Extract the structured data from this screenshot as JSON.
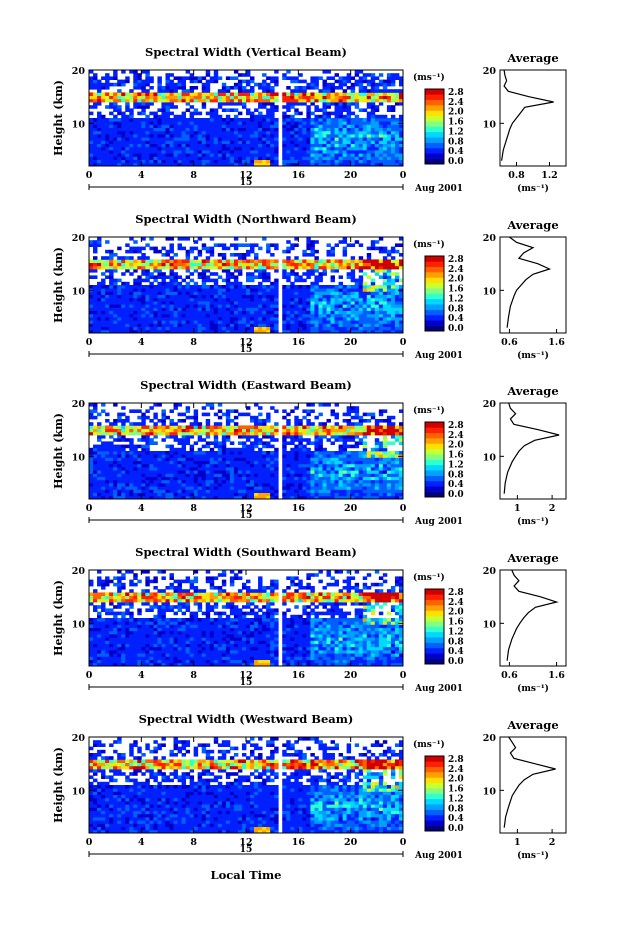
{
  "figure": {
    "xlabel": "Local Time",
    "date_label": "Aug 2001",
    "day_label": "15",
    "colorbar_unit": "(ms⁻¹)",
    "avg_title": "Average",
    "avg_unit": "(ms⁻¹)",
    "colorbar_ticks": [
      "0.0",
      "0.4",
      "0.8",
      "1.2",
      "1.6",
      "2.0",
      "2.4",
      "2.8"
    ],
    "colorbar_colors": [
      "#000080",
      "#0000c8",
      "#0020ff",
      "#0060ff",
      "#00a0ff",
      "#00d8ff",
      "#30ffd0",
      "#80ff80",
      "#c8ff30",
      "#ffe000",
      "#ffa000",
      "#ff6000",
      "#ff2000",
      "#d00000"
    ]
  },
  "chart_data": [
    {
      "type": "heatmap",
      "title": "Spectral Width (Vertical Beam)",
      "ylabel": "Height (km)",
      "xlim": [
        0,
        24
      ],
      "ylim": [
        2,
        20
      ],
      "xticks": [
        "0",
        "4",
        "8",
        "12",
        "16",
        "20",
        "0"
      ],
      "yticks": [
        "10",
        "20"
      ],
      "colorbar_range": [
        0.0,
        2.8
      ],
      "profile": {
        "title": "Average",
        "xticks": [
          "0.8",
          "1.2"
        ],
        "xlim": [
          0.6,
          1.4
        ],
        "yticks": [
          "10",
          "20"
        ],
        "height": [
          3,
          5,
          7,
          9,
          10,
          11,
          12,
          13,
          14,
          15,
          16,
          17,
          18,
          19,
          20
        ],
        "value": [
          0.62,
          0.64,
          0.68,
          0.72,
          0.75,
          0.8,
          0.85,
          0.9,
          1.25,
          0.95,
          0.7,
          0.65,
          0.68,
          0.66,
          0.65
        ]
      }
    },
    {
      "type": "heatmap",
      "title": "Spectral Width (Northward Beam)",
      "ylabel": "Height (km)",
      "xlim": [
        0,
        24
      ],
      "ylim": [
        2,
        20
      ],
      "xticks": [
        "0",
        "4",
        "8",
        "12",
        "16",
        "20",
        "0"
      ],
      "yticks": [
        "10",
        "20"
      ],
      "colorbar_range": [
        0.0,
        2.8
      ],
      "profile": {
        "title": "Average",
        "xticks": [
          "0.6",
          "1.6"
        ],
        "xlim": [
          0.4,
          1.8
        ],
        "yticks": [
          "10",
          "20"
        ],
        "height": [
          3,
          5,
          7,
          9,
          10,
          11,
          12,
          13,
          14,
          15,
          16,
          17,
          18,
          19,
          20
        ],
        "value": [
          0.55,
          0.58,
          0.62,
          0.7,
          0.75,
          0.85,
          0.95,
          1.1,
          1.45,
          1.2,
          0.8,
          0.9,
          1.1,
          0.75,
          0.6
        ]
      }
    },
    {
      "type": "heatmap",
      "title": "Spectral Width (Eastward Beam)",
      "ylabel": "Height (km)",
      "xlim": [
        0,
        24
      ],
      "ylim": [
        2,
        20
      ],
      "xticks": [
        "0",
        "4",
        "8",
        "12",
        "16",
        "20",
        "0"
      ],
      "yticks": [
        "10",
        "20"
      ],
      "colorbar_range": [
        0.0,
        2.8
      ],
      "profile": {
        "title": "Average",
        "xticks": [
          "1",
          "2"
        ],
        "xlim": [
          0.5,
          2.4
        ],
        "yticks": [
          "10",
          "20"
        ],
        "height": [
          3,
          5,
          7,
          9,
          10,
          11,
          12,
          13,
          14,
          15,
          16,
          17,
          18,
          19,
          20
        ],
        "value": [
          0.62,
          0.65,
          0.72,
          0.85,
          0.95,
          1.05,
          1.2,
          1.5,
          2.2,
          1.6,
          0.9,
          0.8,
          0.95,
          0.8,
          0.75
        ]
      }
    },
    {
      "type": "heatmap",
      "title": "Spectral Width (Southward Beam)",
      "ylabel": "Height (km)",
      "xlim": [
        0,
        24
      ],
      "ylim": [
        2,
        20
      ],
      "xticks": [
        "0",
        "4",
        "8",
        "12",
        "16",
        "20",
        "0"
      ],
      "yticks": [
        "10",
        "20"
      ],
      "colorbar_range": [
        0.0,
        2.8
      ],
      "profile": {
        "title": "Average",
        "xticks": [
          "0.6",
          "1.6"
        ],
        "xlim": [
          0.4,
          1.8
        ],
        "yticks": [
          "10",
          "20"
        ],
        "height": [
          3,
          5,
          7,
          9,
          10,
          11,
          12,
          13,
          14,
          15,
          16,
          17,
          18,
          19,
          20
        ],
        "value": [
          0.55,
          0.58,
          0.65,
          0.75,
          0.82,
          0.9,
          1.0,
          1.15,
          1.6,
          1.25,
          0.8,
          0.7,
          0.8,
          0.7,
          0.65
        ]
      }
    },
    {
      "type": "heatmap",
      "title": "Spectral Width (Westward Beam)",
      "ylabel": "Height (km)",
      "xlim": [
        0,
        24
      ],
      "ylim": [
        2,
        20
      ],
      "xticks": [
        "0",
        "4",
        "8",
        "12",
        "16",
        "20",
        "0"
      ],
      "yticks": [
        "10",
        "20"
      ],
      "colorbar_range": [
        0.0,
        2.8
      ],
      "profile": {
        "title": "Average",
        "xticks": [
          "1",
          "2"
        ],
        "xlim": [
          0.5,
          2.4
        ],
        "yticks": [
          "10",
          "20"
        ],
        "height": [
          3,
          5,
          7,
          9,
          10,
          11,
          12,
          13,
          14,
          15,
          16,
          17,
          18,
          19,
          20
        ],
        "value": [
          0.62,
          0.66,
          0.75,
          0.85,
          0.95,
          1.05,
          1.2,
          1.45,
          2.1,
          1.5,
          0.9,
          0.8,
          0.95,
          0.85,
          0.75
        ]
      }
    }
  ]
}
